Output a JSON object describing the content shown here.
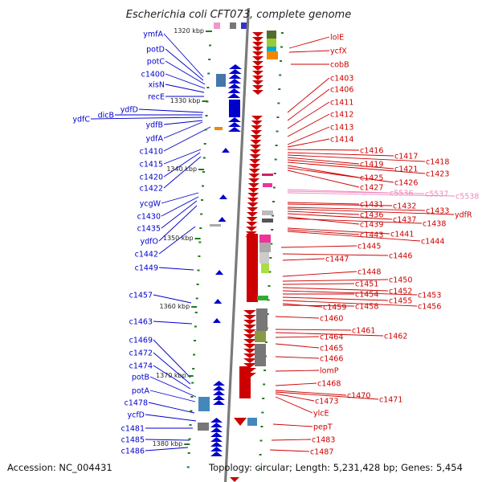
{
  "title": "Escherichia coli CFT073, complete genome",
  "accession": "Accession: NC_004431",
  "summary": "Topology: circular; Length: 5,231,428 bp; Genes: 5,454",
  "colors": {
    "minus_strand": "#0000cc",
    "plus_strand": "#cc0000",
    "pseudo": "#ee88bb",
    "backbone": "#7a7a7a",
    "tick": "#1f7a1f"
  },
  "scale_labels": [
    "1320 kbp",
    "1330 kbp",
    "1340 kbp",
    "1350 kbp",
    "1360 kbp",
    "1370 kbp",
    "1380 kbp"
  ],
  "left_genes": [
    "ymfA",
    "potD",
    "potC",
    "c1400",
    "xisN",
    "recE",
    "ydfD",
    "dicB",
    "ydfC",
    "ydfB",
    "ydfA",
    "c1410",
    "c1415",
    "c1420",
    "c1422",
    "ycgW",
    "c1430",
    "c1435",
    "ydfO",
    "c1442",
    "c1449",
    "c1457",
    "c1463",
    "c1469",
    "c1472",
    "c1474",
    "potB",
    "potA",
    "c1478",
    "ycfD",
    "c1481",
    "c1485",
    "c1486"
  ],
  "right_genes": [
    "lolE",
    "ycfX",
    "cobB",
    "c1403",
    "c1406",
    "c1411",
    "c1412",
    "c1413",
    "c1414",
    "c1416",
    "c1417",
    "c1418",
    "c1419",
    "c1421",
    "c1423",
    "c1425",
    "c1426",
    "c1427",
    "c5536",
    "c5537",
    "c5538",
    "c1431",
    "c1432",
    "c1433",
    "ydfR",
    "c1436",
    "c1437",
    "c1439",
    "c1438",
    "c1443",
    "c1441",
    "c1444",
    "c1445",
    "c1446",
    "c1447",
    "c1448",
    "c1450",
    "c1451",
    "c1452",
    "c1453",
    "c1454",
    "c1455",
    "c1456",
    "c1459",
    "c1458",
    "c1460",
    "c1461",
    "c1462",
    "c1464",
    "c1465",
    "c1466",
    "lomP",
    "c1468",
    "c1470",
    "c1471",
    "c1473",
    "ylcE",
    "pepT",
    "c1483",
    "c1487"
  ],
  "pseudo_genes": [
    "c5536",
    "c5537",
    "c5538"
  ]
}
